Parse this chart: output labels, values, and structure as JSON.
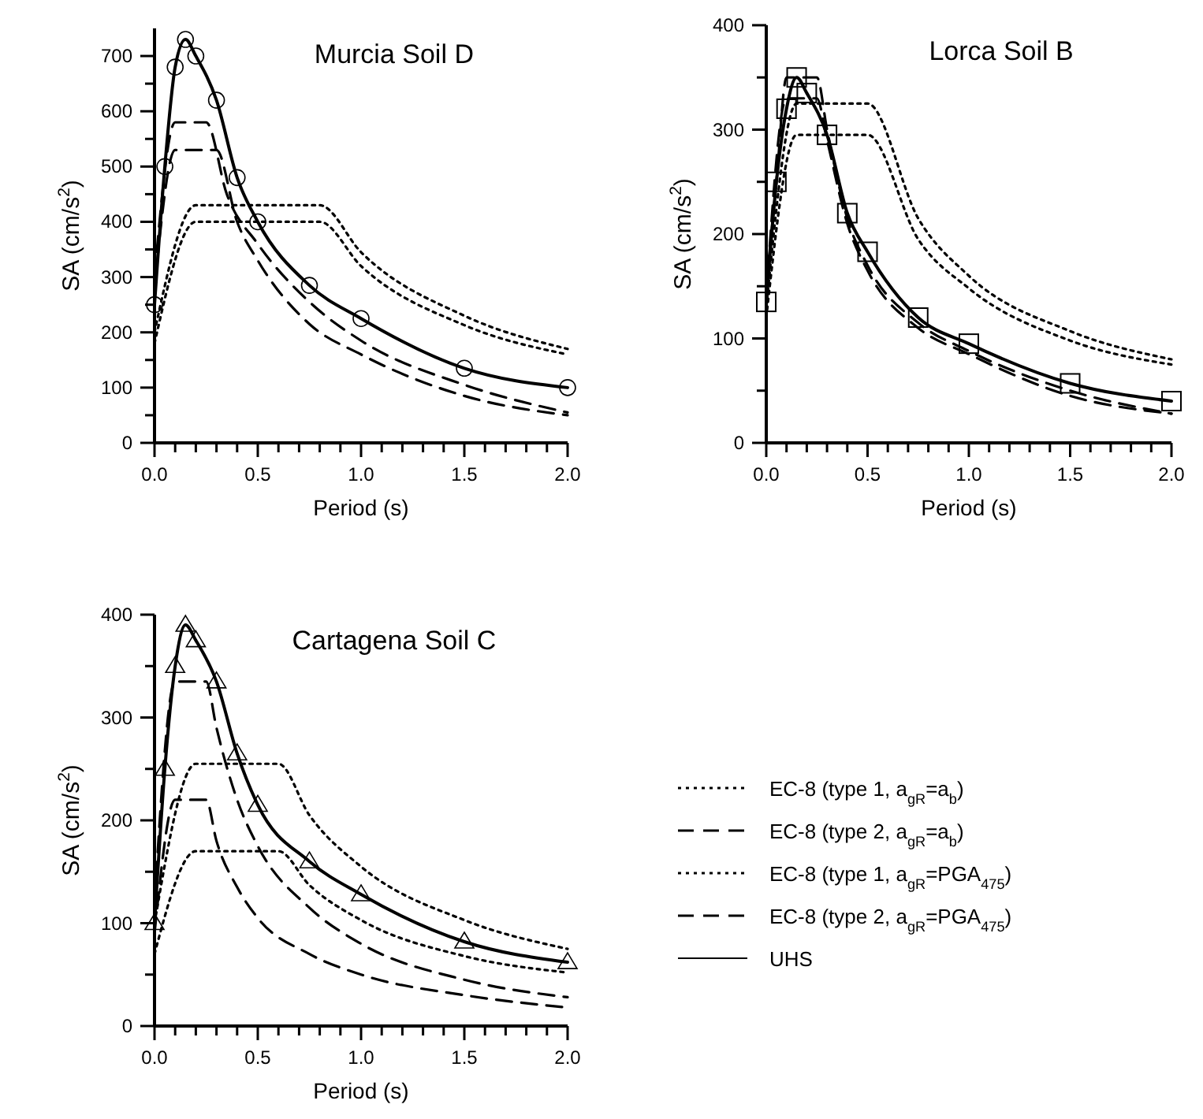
{
  "chart_data": [
    {
      "type": "line",
      "title": "Murcia Soil D",
      "xlabel": "Period (s)",
      "ylabel": "SA (cm/s$^{2}$)",
      "xlim": [
        0,
        2
      ],
      "ylim": [
        0,
        750
      ],
      "xticks": [
        {
          "value": 0,
          "label": "0.0"
        },
        {
          "value": 0.1,
          "label": null
        },
        {
          "value": 0.2,
          "label": null
        },
        {
          "value": 0.3,
          "label": null
        },
        {
          "value": 0.4,
          "label": null
        },
        {
          "value": 0.5,
          "label": "0.5"
        },
        {
          "value": 0.6,
          "label": null
        },
        {
          "value": 0.7,
          "label": null
        },
        {
          "value": 0.8,
          "label": null
        },
        {
          "value": 0.9,
          "label": null
        },
        {
          "value": 1,
          "label": "1.0"
        },
        {
          "value": 1.1,
          "label": null
        },
        {
          "value": 1.2,
          "label": null
        },
        {
          "value": 1.3,
          "label": null
        },
        {
          "value": 1.4,
          "label": null
        },
        {
          "value": 1.5,
          "label": "1.5"
        },
        {
          "value": 1.6,
          "label": null
        },
        {
          "value": 1.7,
          "label": null
        },
        {
          "value": 1.8,
          "label": null
        },
        {
          "value": 1.9,
          "label": null
        },
        {
          "value": 2,
          "label": "2.0"
        }
      ],
      "yticks": [
        0,
        {
          "value": 50,
          "label": null
        },
        100,
        {
          "value": 150,
          "label": null
        },
        200,
        {
          "value": 250,
          "label": null
        },
        300,
        {
          "value": 350,
          "label": null
        },
        400,
        {
          "value": 450,
          "label": null
        },
        500,
        {
          "value": 550,
          "label": null
        },
        600,
        {
          "value": 650,
          "label": null
        },
        700
      ],
      "grid": false,
      "legend": false,
      "series": [
        {
          "color": "#000000",
          "line_style": "dotted",
          "x": [
            0,
            0.2,
            0.8,
            1.0,
            1.5,
            2.0
          ],
          "values": [
            200,
            430,
            430,
            345,
            230,
            170
          ]
        },
        {
          "color": "#000000",
          "line_style": "dashed",
          "x": [
            0,
            0.1,
            0.25,
            0.35,
            0.5,
            0.75,
            1.0,
            1.5,
            2.0
          ],
          "values": [
            300,
            580,
            580,
            450,
            360,
            255,
            185,
            105,
            55
          ]
        },
        {
          "color": "#000000",
          "line_style": "dotted",
          "x": [
            0,
            0.2,
            0.8,
            1.0,
            1.5,
            2.0
          ],
          "values": [
            180,
            400,
            400,
            320,
            213,
            160
          ]
        },
        {
          "color": "#000000",
          "line_style": "dashed",
          "x": [
            0,
            0.1,
            0.3,
            0.4,
            0.5,
            0.75,
            1.0,
            1.5,
            2.0
          ],
          "values": [
            280,
            530,
            530,
            400,
            330,
            215,
            160,
            85,
            50
          ]
        },
        {
          "color": "#000000",
          "line_style": "solid",
          "marker": "circle",
          "x": [
            0,
            0.05,
            0.1,
            0.15,
            0.2,
            0.3,
            0.4,
            0.5,
            0.75,
            1.0,
            1.5,
            2.0
          ],
          "values": [
            250,
            500,
            680,
            730,
            700,
            620,
            480,
            400,
            285,
            225,
            135,
            100
          ]
        }
      ]
    },
    {
      "type": "line",
      "title": "Lorca Soil B",
      "xlabel": "Period (s)",
      "ylabel": "SA (cm/s$^{2}$)",
      "xlim": [
        0,
        2
      ],
      "ylim": [
        0,
        400
      ],
      "xticks": [
        {
          "value": 0,
          "label": "0.0"
        },
        {
          "value": 0.1,
          "label": null
        },
        {
          "value": 0.2,
          "label": null
        },
        {
          "value": 0.3,
          "label": null
        },
        {
          "value": 0.4,
          "label": null
        },
        {
          "value": 0.5,
          "label": "0.5"
        },
        {
          "value": 0.6,
          "label": null
        },
        {
          "value": 0.7,
          "label": null
        },
        {
          "value": 0.8,
          "label": null
        },
        {
          "value": 0.9,
          "label": null
        },
        {
          "value": 1,
          "label": "1.0"
        },
        {
          "value": 1.1,
          "label": null
        },
        {
          "value": 1.2,
          "label": null
        },
        {
          "value": 1.3,
          "label": null
        },
        {
          "value": 1.4,
          "label": null
        },
        {
          "value": 1.5,
          "label": "1.5"
        },
        {
          "value": 1.6,
          "label": null
        },
        {
          "value": 1.7,
          "label": null
        },
        {
          "value": 1.8,
          "label": null
        },
        {
          "value": 1.9,
          "label": null
        },
        {
          "value": 2,
          "label": "2.0"
        }
      ],
      "yticks": [
        0,
        {
          "value": 50,
          "label": null
        },
        100,
        {
          "value": 150,
          "label": null
        },
        200,
        {
          "value": 250,
          "label": null
        },
        300,
        {
          "value": 350,
          "label": null
        },
        400
      ],
      "grid": false,
      "legend": false,
      "series": [
        {
          "color": "#000000",
          "line_style": "dotted",
          "x": [
            0,
            0.15,
            0.5,
            0.75,
            1.0,
            1.5,
            2.0
          ],
          "values": [
            130,
            325,
            325,
            215,
            160,
            107,
            80
          ]
        },
        {
          "color": "#000000",
          "line_style": "dashed",
          "x": [
            0,
            0.05,
            0.1,
            0.25,
            0.3,
            0.4,
            0.5,
            0.75,
            1.0,
            1.5,
            2.0
          ],
          "values": [
            150,
            250,
            350,
            350,
            300,
            215,
            170,
            115,
            88,
            50,
            28
          ]
        },
        {
          "color": "#000000",
          "line_style": "dotted",
          "x": [
            0,
            0.15,
            0.5,
            0.75,
            1.0,
            1.5,
            2.0
          ],
          "values": [
            120,
            295,
            295,
            195,
            148,
            98,
            75
          ]
        },
        {
          "color": "#000000",
          "line_style": "dashed",
          "x": [
            0,
            0.1,
            0.25,
            0.3,
            0.4,
            0.5,
            0.75,
            1.0,
            1.5,
            2.0
          ],
          "values": [
            140,
            330,
            330,
            290,
            210,
            165,
            110,
            85,
            45,
            28
          ]
        },
        {
          "color": "#000000",
          "line_style": "solid",
          "marker": "square",
          "x": [
            0,
            0.05,
            0.1,
            0.15,
            0.2,
            0.3,
            0.4,
            0.5,
            0.75,
            1.0,
            1.5,
            2.0
          ],
          "values": [
            135,
            250,
            320,
            350,
            335,
            295,
            220,
            183,
            120,
            95,
            57,
            40
          ]
        }
      ]
    },
    {
      "type": "line",
      "title": "Cartagena Soil C",
      "xlabel": "Period (s)",
      "ylabel": "SA (cm/s$^{2}$)",
      "xlim": [
        0,
        2
      ],
      "ylim": [
        0,
        400
      ],
      "xticks": [
        {
          "value": 0,
          "label": "0.0"
        },
        {
          "value": 0.1,
          "label": null
        },
        {
          "value": 0.2,
          "label": null
        },
        {
          "value": 0.3,
          "label": null
        },
        {
          "value": 0.4,
          "label": null
        },
        {
          "value": 0.5,
          "label": "0.5"
        },
        {
          "value": 0.6,
          "label": null
        },
        {
          "value": 0.7,
          "label": null
        },
        {
          "value": 0.8,
          "label": null
        },
        {
          "value": 0.9,
          "label": null
        },
        {
          "value": 1,
          "label": "1.0"
        },
        {
          "value": 1.1,
          "label": null
        },
        {
          "value": 1.2,
          "label": null
        },
        {
          "value": 1.3,
          "label": null
        },
        {
          "value": 1.4,
          "label": null
        },
        {
          "value": 1.5,
          "label": "1.5"
        },
        {
          "value": 1.6,
          "label": null
        },
        {
          "value": 1.7,
          "label": null
        },
        {
          "value": 1.8,
          "label": null
        },
        {
          "value": 1.9,
          "label": null
        },
        {
          "value": 2,
          "label": "2.0"
        }
      ],
      "yticks": [
        0,
        {
          "value": 50,
          "label": null
        },
        100,
        {
          "value": 150,
          "label": null
        },
        200,
        {
          "value": 250,
          "label": null
        },
        300,
        {
          "value": 350,
          "label": null
        },
        400
      ],
      "grid": false,
      "legend": "right",
      "series": [
        {
          "name": "EC-8 (type 1, a$_{gR}$=a$_{b}$)",
          "color": "#000000",
          "line_style": "dotted",
          "x": [
            0,
            0.2,
            0.6,
            0.75,
            1.0,
            1.5,
            2.0
          ],
          "values": [
            100,
            255,
            255,
            205,
            155,
            103,
            75
          ]
        },
        {
          "name": "EC-8 (type 2, a$_{gR}$=a$_{b}$)",
          "color": "#000000",
          "line_style": "dashed",
          "x": [
            0,
            0.1,
            0.25,
            0.3,
            0.4,
            0.5,
            0.75,
            1.0,
            1.5,
            2.0
          ],
          "values": [
            120,
            335,
            335,
            290,
            220,
            175,
            115,
            80,
            45,
            28
          ]
        },
        {
          "name": "EC-8 (type 1, a$_{gR}$=PGA$_{475}$)",
          "color": "#000000",
          "line_style": "dotted",
          "x": [
            0,
            0.2,
            0.6,
            0.75,
            1.0,
            1.5,
            2.0
          ],
          "values": [
            70,
            170,
            170,
            137,
            103,
            68,
            52
          ]
        },
        {
          "name": "EC-8 (type 2, a$_{gR}$=PGA$_{475}$)",
          "color": "#000000",
          "line_style": "dashed",
          "x": [
            0,
            0.1,
            0.25,
            0.3,
            0.4,
            0.5,
            0.75,
            1.0,
            1.5,
            2.0
          ],
          "values": [
            90,
            220,
            220,
            180,
            135,
            105,
            70,
            50,
            30,
            18
          ]
        },
        {
          "name": "UHS",
          "color": "#000000",
          "line_style": "solid",
          "marker": "triangle",
          "x": [
            0,
            0.05,
            0.1,
            0.15,
            0.2,
            0.3,
            0.4,
            0.5,
            0.75,
            1.0,
            1.5,
            2.0
          ],
          "values": [
            100,
            250,
            350,
            390,
            375,
            335,
            265,
            215,
            160,
            128,
            82,
            62
          ]
        }
      ]
    }
  ]
}
